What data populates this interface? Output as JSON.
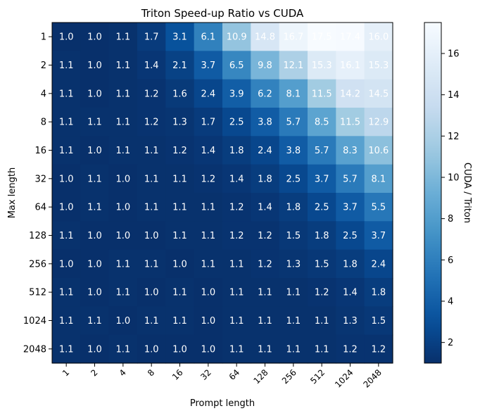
{
  "chart_data": {
    "type": "heatmap",
    "title": "Triton Speed-up Ratio vs CUDA",
    "xlabel": "Prompt length",
    "ylabel": "Max length",
    "x_categories": [
      "1",
      "2",
      "4",
      "8",
      "16",
      "32",
      "64",
      "128",
      "256",
      "512",
      "1024",
      "2048"
    ],
    "y_categories": [
      "1",
      "2",
      "4",
      "8",
      "16",
      "32",
      "64",
      "128",
      "256",
      "512",
      "1024",
      "2048"
    ],
    "values": [
      [
        1.0,
        1.0,
        1.1,
        1.7,
        3.1,
        6.1,
        10.9,
        14.8,
        16.7,
        17.5,
        17.4,
        16.0
      ],
      [
        1.1,
        1.0,
        1.1,
        1.4,
        2.1,
        3.7,
        6.5,
        9.8,
        12.1,
        15.3,
        16.1,
        15.3
      ],
      [
        1.1,
        1.0,
        1.1,
        1.2,
        1.6,
        2.4,
        3.9,
        6.2,
        8.1,
        11.5,
        14.2,
        14.5
      ],
      [
        1.1,
        1.1,
        1.1,
        1.2,
        1.3,
        1.7,
        2.5,
        3.8,
        5.7,
        8.5,
        11.5,
        12.9
      ],
      [
        1.1,
        1.0,
        1.1,
        1.1,
        1.2,
        1.4,
        1.8,
        2.4,
        3.8,
        5.7,
        8.3,
        10.6
      ],
      [
        1.0,
        1.1,
        1.0,
        1.1,
        1.1,
        1.2,
        1.4,
        1.8,
        2.5,
        3.7,
        5.7,
        8.1
      ],
      [
        1.0,
        1.1,
        1.0,
        1.1,
        1.1,
        1.1,
        1.2,
        1.4,
        1.8,
        2.5,
        3.7,
        5.5
      ],
      [
        1.1,
        1.0,
        1.0,
        1.0,
        1.1,
        1.1,
        1.2,
        1.2,
        1.5,
        1.8,
        2.5,
        3.7
      ],
      [
        1.0,
        1.0,
        1.1,
        1.1,
        1.0,
        1.1,
        1.1,
        1.2,
        1.3,
        1.5,
        1.8,
        2.4
      ],
      [
        1.1,
        1.0,
        1.1,
        1.0,
        1.1,
        1.0,
        1.1,
        1.1,
        1.1,
        1.2,
        1.4,
        1.8
      ],
      [
        1.1,
        1.1,
        1.0,
        1.1,
        1.1,
        1.0,
        1.1,
        1.1,
        1.1,
        1.1,
        1.3,
        1.5
      ],
      [
        1.1,
        1.0,
        1.1,
        1.0,
        1.0,
        1.0,
        1.1,
        1.1,
        1.1,
        1.1,
        1.2,
        1.2
      ]
    ],
    "colormap": "Blues_r",
    "vmin": 1.0,
    "vmax": 17.5,
    "colorbar": {
      "label": "CUDA / Triton",
      "ticks": [
        2,
        4,
        6,
        8,
        10,
        12,
        14,
        16
      ]
    }
  }
}
